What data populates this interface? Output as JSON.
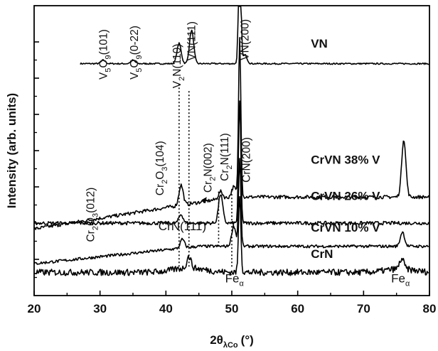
{
  "chart_data": {
    "type": "line",
    "xlabel": "2θλCo (°)",
    "xlabel_parts": {
      "main": "2θ",
      "sub": "λCo",
      "unit": "(°)"
    },
    "ylabel": "Intensity (arb. units)",
    "xlim": [
      20,
      80
    ],
    "x_ticks": [
      "20",
      "30",
      "40",
      "50",
      "60",
      "70",
      "80"
    ],
    "y_tick_labels": "none",
    "grid": false,
    "legend": "none",
    "series": [
      {
        "name": "VN",
        "offset": 0.8,
        "peaks": [
          {
            "x": 30.5,
            "h": 0.012
          },
          {
            "x": 35.0,
            "h": 0.012
          },
          {
            "x": 42.0,
            "h": 0.07
          },
          {
            "x": 43.9,
            "h": 0.115
          },
          {
            "x": 51.2,
            "h": 0.5
          },
          {
            "x": 52.0,
            "h": 0.03
          }
        ]
      },
      {
        "name": "CrVN 38% V",
        "offset": 0.34,
        "peaks": [
          {
            "x": 42.3,
            "h": 0.07
          },
          {
            "x": 48.3,
            "h": 0.025
          },
          {
            "x": 50.3,
            "h": 0.035
          },
          {
            "x": 51.2,
            "h": 0.55
          },
          {
            "x": 76.1,
            "h": 0.2
          }
        ]
      },
      {
        "name": "CrVN 26% V",
        "offset": 0.25,
        "peaks": [
          {
            "x": 42.3,
            "h": 0.03
          },
          {
            "x": 48.3,
            "h": 0.1
          },
          {
            "x": 51.2,
            "h": 0.42
          }
        ]
      },
      {
        "name": "CrVN 10% V",
        "offset": 0.17,
        "peaks": [
          {
            "x": 42.5,
            "h": 0.03
          },
          {
            "x": 50.3,
            "h": 0.07
          },
          {
            "x": 51.2,
            "h": 0.3
          },
          {
            "x": 75.9,
            "h": 0.05
          }
        ]
      },
      {
        "name": "CrN",
        "offset": 0.08,
        "peaks": [
          {
            "x": 43.5,
            "h": 0.04
          },
          {
            "x": 51.2,
            "h": 0.27
          },
          {
            "x": 75.8,
            "h": 0.035
          }
        ]
      }
    ],
    "series_labels": [
      "VN",
      "CrVN 38% V",
      "CrVN 26% V",
      "CrVN 10% V",
      "CrN"
    ],
    "annotations": [
      {
        "x": 30.5,
        "parts": [
          [
            "V",
            ""
          ],
          [
            "5",
            "sub"
          ],
          [
            "O",
            ""
          ],
          [
            "9",
            "sub"
          ],
          [
            "(101)",
            ""
          ]
        ]
      },
      {
        "x": 35.0,
        "parts": [
          [
            "V",
            ""
          ],
          [
            "5",
            "sub"
          ],
          [
            "O",
            ""
          ],
          [
            "9",
            "sub"
          ],
          [
            "(0-22)",
            ""
          ]
        ]
      },
      {
        "x": 41.7,
        "parts": [
          [
            "V",
            ""
          ],
          [
            "2",
            "sub"
          ],
          [
            "N(110)",
            ""
          ]
        ]
      },
      {
        "x": 43.9,
        "parts": [
          [
            "VN(111)",
            ""
          ]
        ]
      },
      {
        "x": 51.7,
        "parts": [
          [
            "VN(200)",
            ""
          ]
        ]
      },
      {
        "x": 28.4,
        "parts": [
          [
            "Cr",
            ""
          ],
          [
            "2",
            "sub"
          ],
          [
            "O",
            ""
          ],
          [
            "3",
            "sub"
          ],
          [
            "(012)",
            ""
          ]
        ]
      },
      {
        "x": 38.9,
        "parts": [
          [
            "Cr",
            ""
          ],
          [
            "2",
            "sub"
          ],
          [
            "O",
            ""
          ],
          [
            "3",
            "sub"
          ],
          [
            "(104)",
            ""
          ]
        ]
      },
      {
        "x": 46.0,
        "parts": [
          [
            "Cr",
            ""
          ],
          [
            "2",
            "sub"
          ],
          [
            "N(002)",
            ""
          ]
        ]
      },
      {
        "x": 48.6,
        "parts": [
          [
            "Cr",
            ""
          ],
          [
            "2",
            "sub"
          ],
          [
            "N(111)",
            ""
          ]
        ]
      },
      {
        "x": 51.8,
        "parts": [
          [
            "CrN(200)",
            ""
          ]
        ]
      }
    ],
    "peak_labels": [
      {
        "x": 42.5,
        "parts": [
          [
            "CrN(111)",
            ""
          ]
        ]
      },
      {
        "x": 50.8,
        "parts": [
          [
            "Fe",
            ""
          ],
          [
            "α",
            "sub"
          ]
        ]
      },
      {
        "x": 75.8,
        "parts": [
          [
            "Fe",
            ""
          ],
          [
            "α",
            "sub"
          ]
        ]
      }
    ],
    "reference_lines_x": [
      42.0,
      43.5,
      48.0,
      50.0
    ]
  }
}
